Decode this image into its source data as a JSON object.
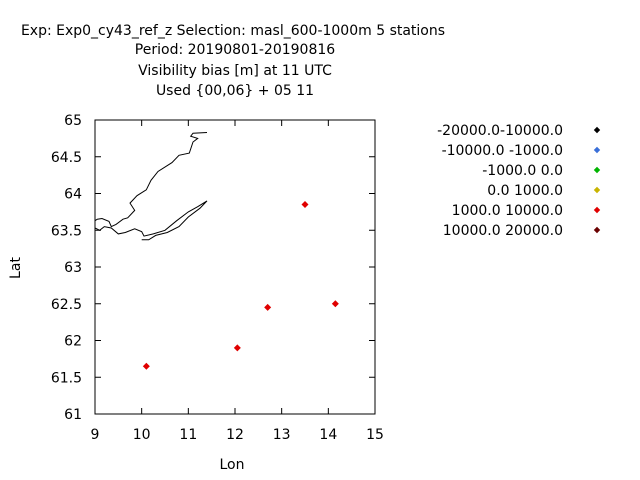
{
  "title_lines": [
    "Exp: Exp0_cy43_ref_z   Selection: masl_600-1000m       5 stations",
    "Period: 20190801-20190816",
    "Visibility bias [m] at  11 UTC",
    "Used {00,06} + 05 11"
  ],
  "chart_data": {
    "type": "scatter",
    "xlabel": "Lon",
    "ylabel": "Lat",
    "xlim": [
      9,
      15
    ],
    "ylim": [
      61,
      65
    ],
    "xticks": [
      "9",
      "10",
      "11",
      "12",
      "13",
      "14",
      "15"
    ],
    "yticks": [
      "61",
      "61.5",
      "62",
      "62.5",
      "63",
      "63.5",
      "64",
      "64.5",
      "65"
    ],
    "grid": false,
    "legend_position": "right",
    "legend": [
      {
        "label": "-20000.0-10000.0",
        "color": "#000000"
      },
      {
        "label": "-10000.0 -1000.0",
        "color": "#3a6fd8"
      },
      {
        "label": "-1000.0 0.0",
        "color": "#00b400"
      },
      {
        "label": "0.0 1000.0",
        "color": "#c8b400"
      },
      {
        "label": "1000.0 10000.0",
        "color": "#e00000"
      },
      {
        "label": "10000.0 20000.0",
        "color": "#6a0000"
      }
    ],
    "series": [
      {
        "name": "1000.0 10000.0",
        "color": "#e00000",
        "points": [
          {
            "x": 10.1,
            "y": 61.65
          },
          {
            "x": 12.05,
            "y": 61.9
          },
          {
            "x": 12.7,
            "y": 62.45
          },
          {
            "x": 14.15,
            "y": 62.5
          },
          {
            "x": 13.5,
            "y": 63.85
          }
        ]
      }
    ],
    "coastline": [
      [
        [
          11.4,
          64.83
        ],
        [
          11.1,
          64.82
        ],
        [
          11.05,
          64.78
        ],
        [
          11.2,
          64.75
        ],
        [
          11.1,
          64.7
        ],
        [
          11.02,
          64.55
        ],
        [
          10.8,
          64.52
        ],
        [
          10.65,
          64.42
        ],
        [
          10.35,
          64.3
        ],
        [
          10.2,
          64.18
        ],
        [
          10.1,
          64.05
        ],
        [
          9.9,
          63.97
        ],
        [
          9.75,
          63.87
        ],
        [
          9.85,
          63.77
        ],
        [
          9.7,
          63.67
        ],
        [
          9.6,
          63.65
        ],
        [
          9.45,
          63.58
        ],
        [
          9.35,
          63.55
        ],
        [
          9.3,
          63.62
        ],
        [
          9.15,
          63.66
        ],
        [
          9.05,
          63.65
        ],
        [
          9.0,
          63.63
        ]
      ],
      [
        [
          9.0,
          63.53
        ],
        [
          9.1,
          63.5
        ],
        [
          9.2,
          63.55
        ],
        [
          9.35,
          63.53
        ],
        [
          9.5,
          63.45
        ],
        [
          9.65,
          63.47
        ],
        [
          9.85,
          63.52
        ],
        [
          10.0,
          63.48
        ],
        [
          10.05,
          63.42
        ],
        [
          10.25,
          63.45
        ],
        [
          10.5,
          63.5
        ],
        [
          10.75,
          63.63
        ],
        [
          11.0,
          63.75
        ],
        [
          11.2,
          63.82
        ],
        [
          11.4,
          63.9
        ],
        [
          11.25,
          63.8
        ],
        [
          11.0,
          63.68
        ],
        [
          10.8,
          63.55
        ],
        [
          10.55,
          63.47
        ],
        [
          10.3,
          63.43
        ],
        [
          10.15,
          63.37
        ],
        [
          10.0,
          63.37
        ]
      ]
    ]
  }
}
